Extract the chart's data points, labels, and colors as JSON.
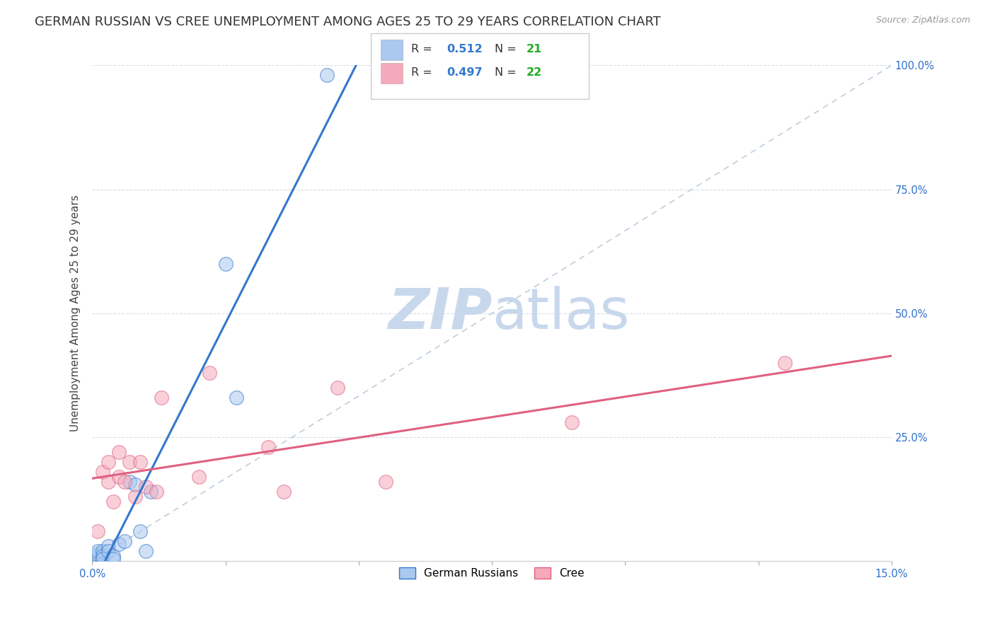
{
  "title": "GERMAN RUSSIAN VS CREE UNEMPLOYMENT AMONG AGES 25 TO 29 YEARS CORRELATION CHART",
  "source": "Source: ZipAtlas.com",
  "ylabel": "Unemployment Among Ages 25 to 29 years",
  "xlim": [
    0.0,
    0.15
  ],
  "ylim": [
    0.0,
    1.0
  ],
  "xticks": [
    0.0,
    0.025,
    0.05,
    0.075,
    0.1,
    0.125,
    0.15
  ],
  "xticklabels_show": [
    "0.0%",
    "",
    "",
    "",
    "",
    "",
    "15.0%"
  ],
  "yticks": [
    0.0,
    0.25,
    0.5,
    0.75,
    1.0
  ],
  "yticklabels_right": [
    "",
    "25.0%",
    "50.0%",
    "75.0%",
    "100.0%"
  ],
  "german_russian_x": [
    0.001,
    0.001,
    0.001,
    0.001,
    0.002,
    0.002,
    0.002,
    0.003,
    0.003,
    0.004,
    0.004,
    0.005,
    0.006,
    0.007,
    0.008,
    0.009,
    0.01,
    0.011,
    0.025,
    0.027,
    0.044
  ],
  "german_russian_y": [
    0.005,
    0.01,
    0.015,
    0.02,
    0.02,
    0.01,
    0.005,
    0.03,
    0.02,
    0.01,
    0.005,
    0.035,
    0.04,
    0.16,
    0.155,
    0.06,
    0.02,
    0.14,
    0.6,
    0.33,
    0.98
  ],
  "cree_x": [
    0.001,
    0.002,
    0.003,
    0.003,
    0.004,
    0.005,
    0.005,
    0.006,
    0.007,
    0.008,
    0.009,
    0.01,
    0.012,
    0.013,
    0.02,
    0.022,
    0.033,
    0.036,
    0.046,
    0.055,
    0.09,
    0.13
  ],
  "cree_y": [
    0.06,
    0.18,
    0.2,
    0.16,
    0.12,
    0.22,
    0.17,
    0.16,
    0.2,
    0.13,
    0.2,
    0.15,
    0.14,
    0.33,
    0.17,
    0.38,
    0.23,
    0.14,
    0.35,
    0.16,
    0.28,
    0.4
  ],
  "german_russian_color": "#aac8f0",
  "cree_color": "#f5aabb",
  "german_russian_line_color": "#3378cc",
  "cree_line_color": "#e06080",
  "reference_line_color": "#b8c8d8",
  "legend_R_color": "#3378cc",
  "legend_N_color": "#22aa22",
  "watermark_zip_color": "#c8d8ec",
  "watermark_atlas_color": "#c8d8ec",
  "background_color": "#ffffff",
  "grid_color": "#d5dde8",
  "title_fontsize": 13,
  "axis_label_fontsize": 11,
  "tick_fontsize": 10.5,
  "scatter_size": 200,
  "scatter_alpha": 0.55,
  "scatter_linewidth": 1.0
}
